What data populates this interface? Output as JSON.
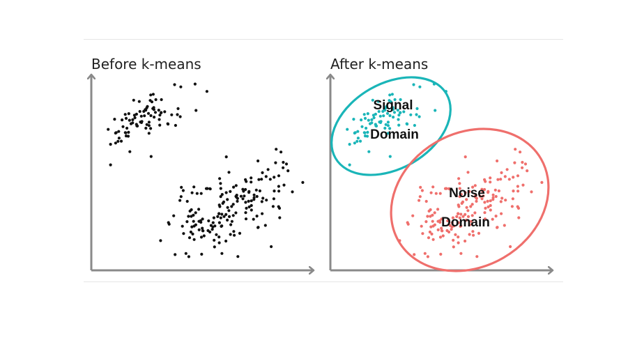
{
  "panels": {
    "before": {
      "title": "Before k-means",
      "point_color": "#111111"
    },
    "after": {
      "title": "After k-means",
      "clusters": {
        "signal": {
          "label_line1": "Signal",
          "label_line2": "Domain",
          "color": "#1ab5b8"
        },
        "noise": {
          "label_line1": "Noise",
          "label_line2": "Domain",
          "color": "#ef6f6c"
        }
      }
    }
  },
  "axis_color": "#8a8a8a",
  "rule_color": "#e6e6e6"
}
